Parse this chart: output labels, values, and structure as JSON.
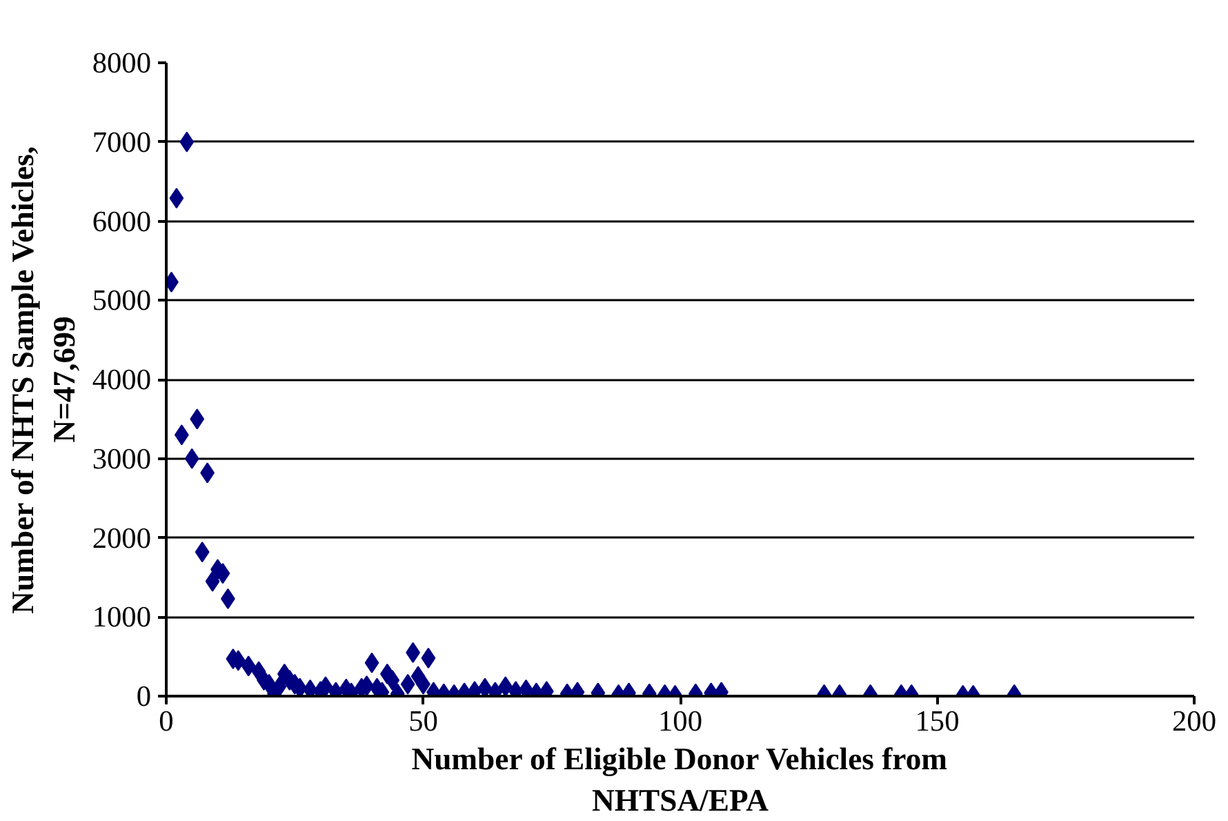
{
  "chart_data": {
    "type": "scatter",
    "xlabel": "Number of Eligible Donor Vehicles from NHTSA/EPA",
    "ylabel": "Number of NHTS Sample Vehicles, N=47,699",
    "x": [
      1,
      2,
      4,
      3,
      5,
      6,
      7,
      8,
      9,
      10,
      11,
      12,
      13,
      14,
      16,
      18,
      19,
      20,
      21,
      22,
      23,
      24,
      25,
      26,
      28,
      30,
      31,
      33,
      35,
      36,
      38,
      39,
      40,
      41,
      42,
      43,
      44,
      45,
      47,
      48,
      49,
      50,
      51,
      52,
      54,
      56,
      58,
      60,
      62,
      64,
      66,
      68,
      70,
      72,
      74,
      78,
      80,
      84,
      88,
      90,
      94,
      97,
      99,
      103,
      106,
      108,
      128,
      131,
      137,
      143,
      145,
      155,
      157,
      165
    ],
    "values": [
      5230,
      6290,
      7000,
      3300,
      3000,
      3500,
      1820,
      2820,
      1450,
      1600,
      1550,
      1230,
      470,
      450,
      380,
      310,
      200,
      150,
      30,
      120,
      280,
      200,
      150,
      100,
      80,
      60,
      120,
      50,
      90,
      40,
      100,
      130,
      420,
      100,
      50,
      280,
      200,
      30,
      150,
      550,
      250,
      150,
      480,
      50,
      30,
      20,
      40,
      60,
      100,
      50,
      120,
      60,
      80,
      40,
      60,
      30,
      50,
      40,
      20,
      40,
      30,
      20,
      10,
      30,
      40,
      50,
      20,
      20,
      20,
      20,
      20,
      10,
      10,
      20
    ],
    "color": "#000080",
    "marker": "diamond",
    "xlim": [
      0,
      200
    ],
    "xticks": [
      0,
      50,
      100,
      150,
      200
    ],
    "ylim": [
      0,
      8000
    ],
    "yticks": [
      0,
      1000,
      2000,
      3000,
      4000,
      5000,
      6000,
      7000,
      8000
    ],
    "grid": "y"
  }
}
